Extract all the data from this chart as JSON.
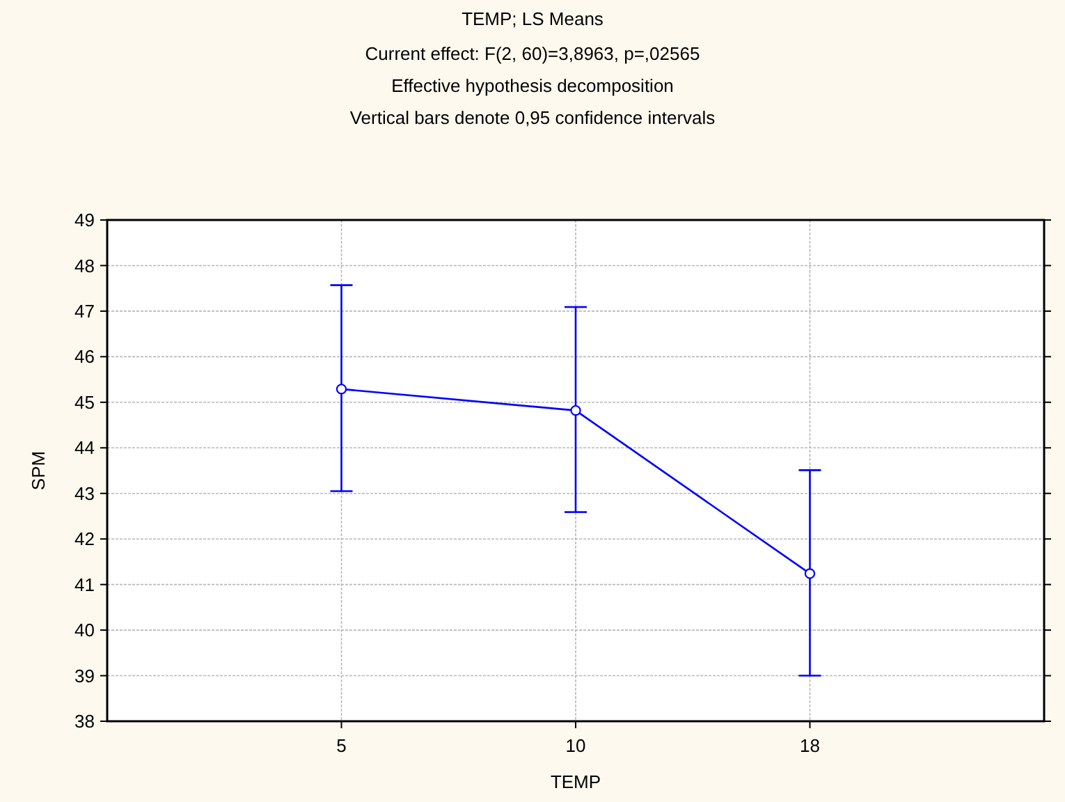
{
  "chart_data": {
    "type": "line",
    "title": "TEMP; LS Means",
    "subtitle": "Current effect: F(2, 60)=3,8963, p=,02565\nEffective hypothesis decomposition\nVertical bars denote 0,95 confidence intervals",
    "xlabel": "TEMP",
    "ylabel": "SPM",
    "categories": [
      "5",
      "10",
      "18"
    ],
    "series": [
      {
        "color": "#0000ff",
        "values": [
          45.29,
          44.82,
          41.24
        ],
        "errors": [
          [
            43.05,
            47.57
          ],
          [
            42.59,
            47.09
          ],
          [
            39.0,
            43.51
          ]
        ]
      }
    ],
    "ylim": [
      38,
      49
    ],
    "yticks": [
      38,
      39,
      40,
      41,
      42,
      43,
      44,
      45,
      46,
      47,
      48,
      49
    ],
    "grid": true,
    "marker": "circle",
    "line_style": "solid"
  }
}
